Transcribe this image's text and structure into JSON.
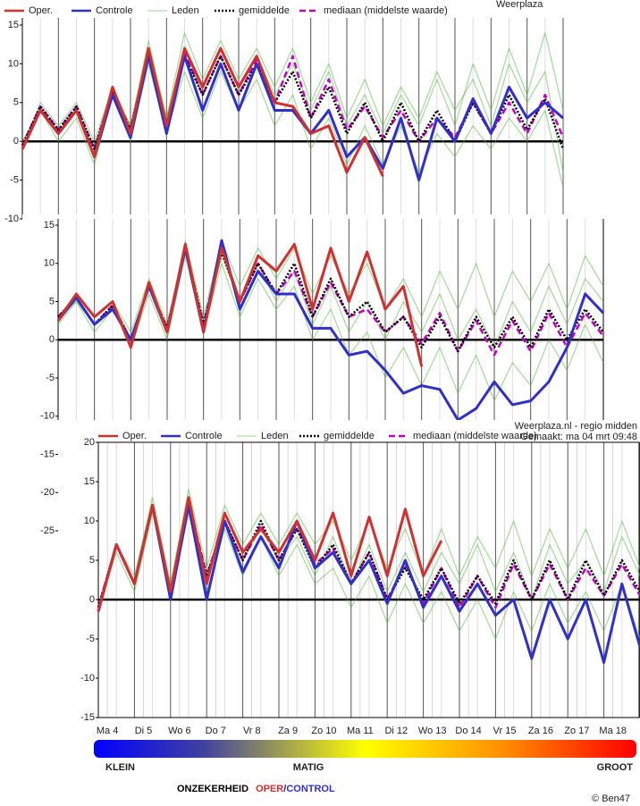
{
  "chart_data": [
    {
      "type": "line",
      "source": "Weerplaza",
      "x": [
        0,
        1,
        2,
        3,
        4,
        5,
        6,
        7,
        8,
        9,
        10,
        11,
        12,
        13,
        14,
        15,
        16,
        17,
        18,
        19,
        20,
        21,
        22,
        23,
        24,
        25,
        26,
        27,
        28,
        29,
        30
      ],
      "xlim": [
        0,
        30
      ],
      "ylim": [
        -10,
        15
      ],
      "yticks": [
        15,
        10,
        5,
        0,
        -5,
        -10
      ],
      "series": [
        {
          "name": "Oper.",
          "color": "#d03030",
          "style": "solid",
          "values": [
            -1,
            4,
            1,
            4,
            -2,
            7,
            1,
            12,
            2,
            12,
            7,
            12,
            7,
            11,
            5,
            4.5,
            1,
            2,
            -4,
            0.5,
            -4.5,
            null,
            null,
            null,
            null,
            null,
            null,
            null,
            null,
            null,
            null
          ]
        },
        {
          "name": "Controle",
          "color": "#3030c8",
          "style": "solid",
          "values": [
            -1,
            4,
            1,
            4,
            -2,
            6,
            0.5,
            11,
            1,
            11,
            4,
            10,
            4,
            10,
            4,
            4,
            1,
            4,
            -2,
            0.5,
            -3.5,
            3,
            -5,
            3,
            0,
            5.5,
            1,
            7,
            3,
            5,
            3
          ]
        },
        {
          "name": "Leden",
          "color": "#5cb848",
          "members": [
            [
              -1,
              5,
              2,
              5,
              0,
              7,
              2,
              13,
              3,
              14,
              8,
              13,
              8,
              12,
              7,
              12,
              5,
              10,
              3,
              8,
              2,
              7,
              3,
              9,
              4,
              8,
              2,
              10,
              5,
              9,
              -4
            ],
            [
              0,
              4,
              0,
              3,
              -3,
              6,
              0,
              10,
              1,
              9,
              3,
              9,
              4,
              8,
              2,
              6,
              -1,
              3,
              -3,
              2,
              -3,
              2,
              -4,
              1,
              -2,
              2,
              -1,
              3,
              0,
              4,
              -6
            ],
            [
              -1,
              4,
              1,
              4,
              -1,
              7,
              2,
              12,
              3,
              12,
              6,
              11,
              6,
              11,
              6,
              10,
              4,
              9,
              2,
              6,
              1,
              6,
              2,
              8,
              2,
              10,
              4,
              12,
              6,
              14,
              4
            ]
          ]
        },
        {
          "name": "gemiddelde",
          "color": "#000000",
          "style": "dotted",
          "values": [
            -0.5,
            4.5,
            1.5,
            4.5,
            -1,
            6.5,
            1.5,
            11.5,
            2,
            11,
            6,
            11,
            6,
            10,
            5,
            9,
            3,
            7,
            1,
            5,
            0,
            5,
            0,
            4,
            0,
            5,
            1,
            6,
            1.5,
            5.5,
            -1
          ]
        },
        {
          "name": "mediaan (middelste waarde)",
          "color": "#c000c0",
          "style": "dashed",
          "values": [
            -0.5,
            4.5,
            1.5,
            4.5,
            -1,
            6.5,
            1.5,
            11.5,
            2,
            11.5,
            6,
            11,
            6,
            10.5,
            5,
            11,
            3,
            8,
            1.5,
            4.5,
            0.5,
            4,
            0,
            3,
            0.5,
            5,
            1,
            5,
            1,
            6,
            0.5
          ]
        }
      ]
    },
    {
      "type": "line",
      "x": [
        0,
        1,
        2,
        3,
        4,
        5,
        6,
        7,
        8,
        9,
        10,
        11,
        12,
        13,
        14,
        15,
        16,
        17,
        18,
        19,
        20,
        21,
        22,
        23,
        24,
        25,
        26,
        27,
        28,
        29,
        30
      ],
      "xlim": [
        0,
        30
      ],
      "ylim": [
        -25,
        15
      ],
      "yticks": [
        15,
        10,
        5,
        0,
        -5,
        -10,
        -15,
        -20,
        -25
      ],
      "series": [
        {
          "color": "#d03030",
          "style": "solid",
          "values": [
            2.5,
            6,
            3,
            5,
            -1,
            7.5,
            1,
            12.5,
            1,
            12,
            5,
            11,
            9,
            12.5,
            4,
            12,
            5,
            11.5,
            4,
            7,
            -3.5,
            null,
            null,
            null,
            null,
            null,
            null,
            null,
            null,
            null,
            null
          ]
        },
        {
          "color": "#3030c8",
          "style": "solid",
          "values": [
            2.5,
            5.5,
            2,
            4,
            0,
            7,
            1,
            12,
            1,
            13,
            4,
            9,
            6,
            6,
            1.5,
            1.5,
            -2,
            -1.5,
            -4,
            -7,
            -6,
            -6.5,
            -10.5,
            -9,
            -5.5,
            -8.5,
            -8,
            -5.5,
            -1,
            6,
            3.5
          ]
        },
        {
          "color": "#5cb848",
          "members": [
            [
              3,
              6,
              3,
              5,
              1,
              8,
              2,
              13,
              3,
              13,
              7,
              12,
              8,
              12,
              6,
              11,
              6,
              10,
              4,
              8,
              3,
              9,
              4,
              10,
              3,
              9,
              5,
              10,
              4,
              11,
              7
            ],
            [
              2,
              5,
              1,
              4,
              -1,
              6,
              0,
              11,
              1,
              10,
              3,
              8,
              4,
              7,
              0,
              4,
              -2,
              1,
              -5,
              -1,
              -6,
              -1,
              -7,
              -2,
              -8,
              -3,
              -6,
              0,
              -4,
              2,
              -3
            ],
            [
              3,
              5,
              2,
              4,
              0,
              7,
              1,
              12,
              2,
              11,
              5,
              10,
              5,
              9,
              2,
              7,
              1,
              5,
              0,
              5,
              1,
              6,
              0,
              4,
              -1,
              5,
              1,
              7,
              2,
              8,
              5
            ]
          ]
        },
        {
          "color": "#000000",
          "style": "dotted",
          "values": [
            3,
            5.5,
            2,
            4.5,
            0,
            7,
            1.5,
            12,
            2,
            11.5,
            5,
            10,
            6,
            10,
            3,
            8,
            3,
            5,
            1,
            3,
            -1,
            3,
            -1.5,
            3,
            -1,
            3,
            -1,
            4,
            0,
            4,
            1
          ]
        },
        {
          "color": "#c000c0",
          "style": "dashed",
          "values": [
            3,
            5.5,
            2,
            4.5,
            0,
            7,
            1.5,
            12,
            2,
            12,
            5,
            10,
            6,
            9,
            3,
            7.5,
            3,
            4,
            1,
            3,
            -0.5,
            3.5,
            -1.5,
            2.5,
            -2,
            2.5,
            -1.5,
            3.5,
            -1,
            3.5,
            0.5
          ]
        }
      ]
    },
    {
      "type": "line",
      "source": "Weerplaza.nl - regio midden",
      "subtitle": "Gemaakt: ma 04 mrt 09:48",
      "x": [
        0,
        1,
        2,
        3,
        4,
        5,
        6,
        7,
        8,
        9,
        10,
        11,
        12,
        13,
        14,
        15,
        16,
        17,
        18,
        19,
        20,
        21,
        22,
        23,
        24,
        25,
        26,
        27,
        28,
        29,
        30
      ],
      "xlim": [
        0,
        30
      ],
      "ylim": [
        -15,
        20
      ],
      "yticks": [
        20,
        15,
        10,
        5,
        0,
        -5,
        -10,
        -15
      ],
      "xticks": [
        {
          "value": 0.5,
          "label": "Ma 4"
        },
        {
          "value": 2.5,
          "label": "Di 5"
        },
        {
          "value": 4.5,
          "label": "Wo 6"
        },
        {
          "value": 6.5,
          "label": "Do 7"
        },
        {
          "value": 8.5,
          "label": "Vr 8"
        },
        {
          "value": 10.5,
          "label": "Za 9"
        },
        {
          "value": 12.5,
          "label": "Zo 10"
        },
        {
          "value": 14.5,
          "label": "Ma 11"
        },
        {
          "value": 16.5,
          "label": "Di 12"
        },
        {
          "value": 18.5,
          "label": "Wo 13"
        },
        {
          "value": 20.5,
          "label": "Do 14"
        },
        {
          "value": 22.5,
          "label": "Vr 15"
        },
        {
          "value": 24.5,
          "label": "Za 16"
        },
        {
          "value": 26.5,
          "label": "Zo 17"
        },
        {
          "value": 28.5,
          "label": "Ma 18"
        }
      ],
      "series": [
        {
          "name": "Oper.",
          "color": "#d03030",
          "style": "solid",
          "values": [
            -1.5,
            7,
            2,
            12,
            1,
            13,
            2,
            11,
            6,
            9,
            6,
            10,
            5,
            11,
            3,
            10.5,
            3,
            11.5,
            3,
            7.5,
            null,
            null,
            null,
            null,
            null,
            null,
            null,
            null,
            null,
            null,
            null
          ]
        },
        {
          "name": "Controle",
          "color": "#3030c8",
          "style": "solid",
          "values": [
            -1.5,
            7,
            2,
            12,
            0,
            12,
            0,
            10,
            3.5,
            8,
            4,
            10,
            4,
            6,
            2,
            5,
            -0.5,
            5,
            -1,
            3,
            -1.5,
            2,
            -2,
            0,
            -7.5,
            0,
            -5,
            0,
            -8,
            2,
            -6
          ]
        },
        {
          "name": "Leden",
          "color": "#5cb848",
          "members": [
            [
              -1,
              7,
              3,
              13,
              2,
              14,
              4,
              12,
              7,
              11,
              7,
              11,
              7,
              10,
              5,
              10,
              4,
              9,
              3,
              9,
              3,
              8,
              4,
              10,
              3,
              9,
              4,
              9,
              3,
              10,
              4
            ],
            [
              -1,
              6,
              1,
              11,
              0,
              11,
              1,
              9,
              3,
              8,
              3,
              7,
              2,
              4,
              -1,
              3,
              -3,
              2,
              -3,
              1,
              -4,
              0,
              -5,
              1,
              -4,
              2,
              -3,
              1,
              -4,
              2,
              -5
            ],
            [
              -1,
              7,
              2,
              12,
              1,
              12,
              3,
              10,
              5,
              9,
              5,
              8,
              3,
              8,
              2,
              7,
              1,
              6,
              1,
              6,
              2,
              7,
              1,
              6,
              0,
              7,
              2,
              5,
              1,
              8,
              3
            ]
          ]
        },
        {
          "name": "gemiddelde",
          "color": "#000000",
          "style": "dotted",
          "values": [
            -1,
            7,
            2,
            12,
            1,
            12,
            3,
            10,
            5,
            10,
            5,
            9,
            4,
            7,
            2,
            6,
            0,
            4,
            0,
            4,
            -0.5,
            3,
            -0.5,
            5,
            0,
            5,
            0,
            5,
            0.5,
            5,
            1
          ]
        },
        {
          "name": "mediaan (middelste waarde)",
          "color": "#c000c0",
          "style": "dashed",
          "values": [
            -1,
            7,
            2,
            12,
            1,
            12.5,
            3,
            10,
            5,
            9.5,
            5,
            9,
            4.5,
            6.5,
            2,
            6,
            0,
            4.5,
            -0.5,
            4,
            -1,
            3,
            -1,
            4.5,
            0,
            4.5,
            0,
            4,
            0.5,
            4.5,
            0.5
          ]
        }
      ]
    }
  ],
  "footer": {
    "low": "KLEIN",
    "mid": "MATIG",
    "high": "GROOT",
    "caption": [
      "ONZEKERHEID",
      "OPER",
      "/",
      "CONTROL"
    ],
    "credit": "© Ben47"
  }
}
